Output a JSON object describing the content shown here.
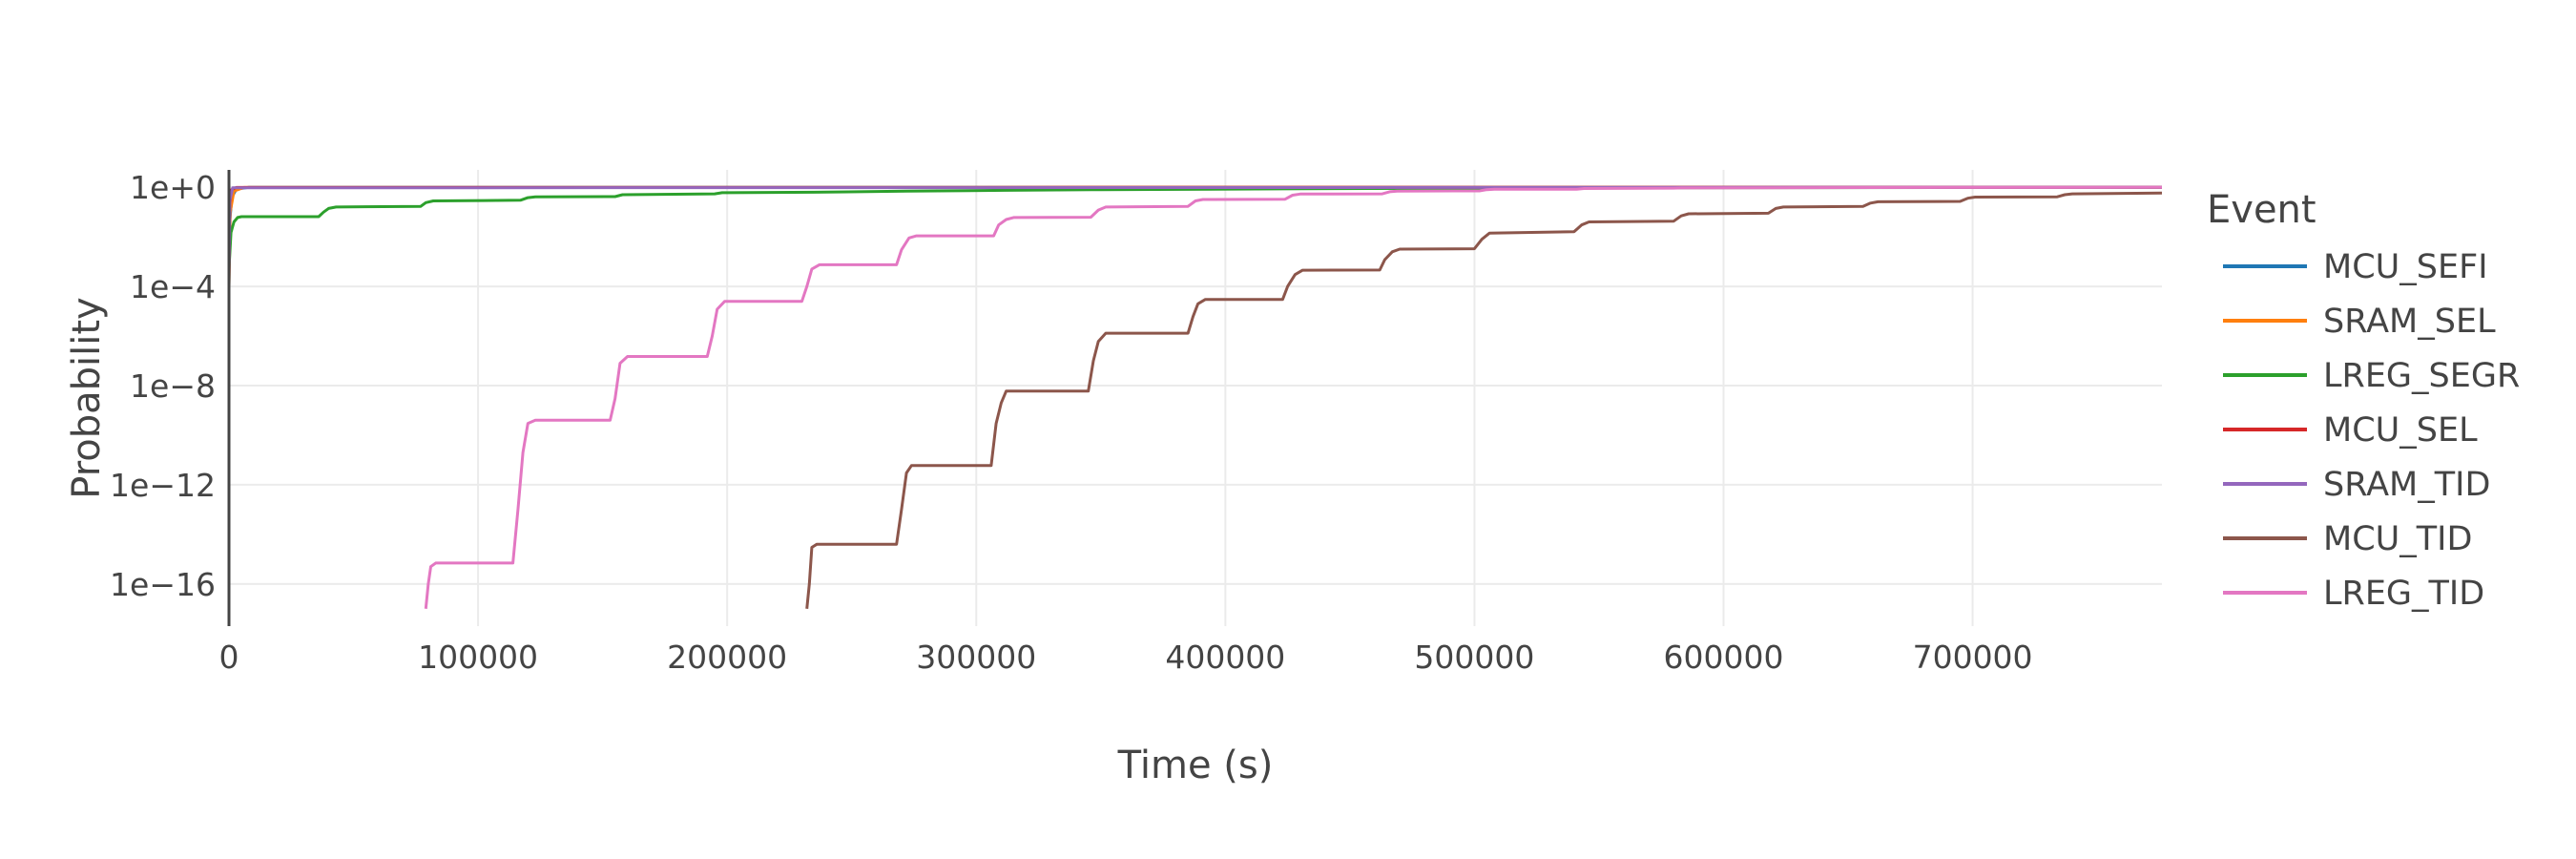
{
  "chart_data": {
    "type": "line",
    "xlabel": "Time (s)",
    "ylabel": "Probability",
    "xlim": [
      0,
      776000
    ],
    "ylim_log10": [
      -17.7,
      0.7
    ],
    "y_scale": "log",
    "xticks": [
      0,
      100000,
      200000,
      300000,
      400000,
      500000,
      600000,
      700000
    ],
    "xtick_labels": [
      "0",
      "100000",
      "200000",
      "300000",
      "400000",
      "500000",
      "600000",
      "700000"
    ],
    "yticks_log10": [
      0,
      -4,
      -8,
      -12,
      -16
    ],
    "ytick_labels": [
      "1e+0",
      "1e−4",
      "1e−8",
      "1e−12",
      "1e−16"
    ],
    "grid": true,
    "legend": {
      "title": "Event",
      "position": "right"
    },
    "series": [
      {
        "name": "MCU_SEFI",
        "color": "#1f77b4",
        "points": [
          [
            0,
            0.0001
          ],
          [
            400,
            0.05
          ],
          [
            1200,
            0.4
          ],
          [
            3000,
            0.85
          ],
          [
            8000,
            0.99
          ],
          [
            776000,
            1.0
          ]
        ]
      },
      {
        "name": "SRAM_SEL",
        "color": "#ff7f0e",
        "points": [
          [
            0,
            0.0001
          ],
          [
            500,
            0.1
          ],
          [
            2000,
            0.7
          ],
          [
            6000,
            0.98
          ],
          [
            776000,
            1.0
          ]
        ]
      },
      {
        "name": "LREG_SEGR",
        "color": "#2ca02c",
        "points": [
          [
            0,
            0.0005
          ],
          [
            800,
            0.015
          ],
          [
            2000,
            0.04
          ],
          [
            3500,
            0.06
          ],
          [
            5000,
            0.065
          ],
          [
            36000,
            0.065
          ],
          [
            38000,
            0.1
          ],
          [
            40000,
            0.14
          ],
          [
            43000,
            0.16
          ],
          [
            77000,
            0.17
          ],
          [
            79000,
            0.24
          ],
          [
            82000,
            0.28
          ],
          [
            117000,
            0.3
          ],
          [
            120000,
            0.38
          ],
          [
            123000,
            0.41
          ],
          [
            155000,
            0.42
          ],
          [
            158000,
            0.5
          ],
          [
            195000,
            0.54
          ],
          [
            198000,
            0.6
          ],
          [
            235000,
            0.63
          ],
          [
            272000,
            0.7
          ],
          [
            312000,
            0.75
          ],
          [
            350000,
            0.8
          ],
          [
            430000,
            0.87
          ],
          [
            510000,
            0.92
          ],
          [
            620000,
            0.96
          ],
          [
            776000,
            0.98
          ]
        ]
      },
      {
        "name": "MCU_SEL",
        "color": "#d62728",
        "points": [
          [
            0,
            0.0003
          ],
          [
            300,
            0.2
          ],
          [
            1000,
            0.8
          ],
          [
            3000,
            0.98
          ],
          [
            776000,
            1.0
          ]
        ]
      },
      {
        "name": "SRAM_TID",
        "color": "#9467bd",
        "points": [
          [
            0,
            0.0002
          ],
          [
            400,
            0.3
          ],
          [
            1500,
            0.95
          ],
          [
            776000,
            1.0
          ]
        ]
      },
      {
        "name": "MCU_TID",
        "color": "#8c564b",
        "points": [
          [
            232000,
            1e-17
          ],
          [
            233000,
            1e-16
          ],
          [
            234000,
            3e-15
          ],
          [
            236000,
            4e-15
          ],
          [
            268000,
            4e-15
          ],
          [
            270000,
            1e-13
          ],
          [
            272000,
            3e-12
          ],
          [
            274000,
            6e-12
          ],
          [
            306000,
            6e-12
          ],
          [
            308000,
            3e-10
          ],
          [
            310000,
            2e-09
          ],
          [
            312000,
            6e-09
          ],
          [
            345000,
            6e-09
          ],
          [
            347000,
            1e-07
          ],
          [
            349000,
            6e-07
          ],
          [
            352000,
            1.3e-06
          ],
          [
            385000,
            1.3e-06
          ],
          [
            387000,
            6e-06
          ],
          [
            389000,
            2e-05
          ],
          [
            392000,
            3e-05
          ],
          [
            423000,
            3e-05
          ],
          [
            425000,
            0.0001
          ],
          [
            428000,
            0.0003
          ],
          [
            431000,
            0.00045
          ],
          [
            462000,
            0.00046
          ],
          [
            464000,
            0.0012
          ],
          [
            467000,
            0.0025
          ],
          [
            470000,
            0.0032
          ],
          [
            500000,
            0.0033
          ],
          [
            503000,
            0.008
          ],
          [
            506000,
            0.014
          ],
          [
            540000,
            0.016
          ],
          [
            543000,
            0.03
          ],
          [
            546000,
            0.04
          ],
          [
            580000,
            0.043
          ],
          [
            583000,
            0.07
          ],
          [
            586000,
            0.085
          ],
          [
            618000,
            0.09
          ],
          [
            621000,
            0.14
          ],
          [
            624000,
            0.16
          ],
          [
            656000,
            0.17
          ],
          [
            659000,
            0.23
          ],
          [
            662000,
            0.26
          ],
          [
            695000,
            0.27
          ],
          [
            698000,
            0.36
          ],
          [
            701000,
            0.4
          ],
          [
            734000,
            0.41
          ],
          [
            737000,
            0.5
          ],
          [
            740000,
            0.54
          ],
          [
            776000,
            0.58
          ]
        ]
      },
      {
        "name": "LREG_TID",
        "color": "#e377c2",
        "points": [
          [
            79000,
            1e-17
          ],
          [
            80000,
            1e-16
          ],
          [
            81000,
            5e-16
          ],
          [
            83000,
            7e-16
          ],
          [
            114000,
            7e-16
          ],
          [
            116000,
            1e-13
          ],
          [
            118000,
            2e-11
          ],
          [
            120000,
            3e-10
          ],
          [
            123000,
            4e-10
          ],
          [
            153000,
            4e-10
          ],
          [
            155000,
            3e-09
          ],
          [
            157000,
            8e-08
          ],
          [
            160000,
            1.5e-07
          ],
          [
            192000,
            1.5e-07
          ],
          [
            194000,
            1e-06
          ],
          [
            196000,
            1.2e-05
          ],
          [
            199000,
            2.5e-05
          ],
          [
            230000,
            2.5e-05
          ],
          [
            232000,
            0.0001
          ],
          [
            234000,
            0.0005
          ],
          [
            237000,
            0.00075
          ],
          [
            268000,
            0.00075
          ],
          [
            270000,
            0.003
          ],
          [
            273000,
            0.009
          ],
          [
            276000,
            0.011
          ],
          [
            307000,
            0.011
          ],
          [
            309000,
            0.03
          ],
          [
            312000,
            0.05
          ],
          [
            315000,
            0.06
          ],
          [
            346000,
            0.062
          ],
          [
            349000,
            0.12
          ],
          [
            352000,
            0.16
          ],
          [
            385000,
            0.17
          ],
          [
            388000,
            0.28
          ],
          [
            391000,
            0.32
          ],
          [
            424000,
            0.33
          ],
          [
            427000,
            0.48
          ],
          [
            430000,
            0.53
          ],
          [
            463000,
            0.54
          ],
          [
            466000,
            0.66
          ],
          [
            469000,
            0.7
          ],
          [
            502000,
            0.71
          ],
          [
            505000,
            0.8
          ],
          [
            508000,
            0.83
          ],
          [
            541000,
            0.84
          ],
          [
            544000,
            0.89
          ],
          [
            580000,
            0.92
          ],
          [
            583000,
            0.94
          ],
          [
            620000,
            0.955
          ],
          [
            660000,
            0.97
          ],
          [
            700000,
            0.98
          ],
          [
            776000,
            0.99
          ]
        ]
      }
    ]
  }
}
